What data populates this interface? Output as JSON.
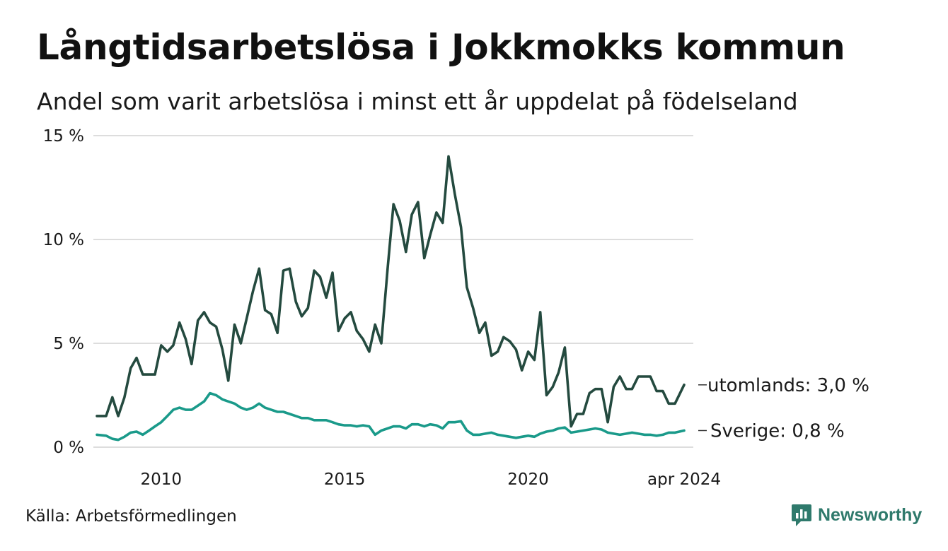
{
  "title": "Långtidsarbetslösa i Jokkmokks kommun",
  "subtitle": "Andel som varit arbetslösa i minst ett år uppdelat på födelseland",
  "source": "Källa: Arbetsförmedlingen",
  "brand": "Newsworthy",
  "colors": {
    "utomlands": "#244a3f",
    "sverige": "#1a9a8a",
    "grid": "#dddddd",
    "brand": "#2f7a6c"
  },
  "chart_data": {
    "type": "line",
    "title": "Långtidsarbetslösa i Jokkmokks kommun",
    "xlabel": "",
    "ylabel": "",
    "ylim": [
      0,
      15
    ],
    "xlim": [
      2008.25,
      2024.5
    ],
    "y_ticks": [
      {
        "value": 0,
        "label": "0 %"
      },
      {
        "value": 5,
        "label": "5 %"
      },
      {
        "value": 10,
        "label": "10 %"
      },
      {
        "value": 15,
        "label": "15 %"
      }
    ],
    "x_ticks": [
      {
        "value": 2010,
        "label": "2010"
      },
      {
        "value": 2015,
        "label": "2015"
      },
      {
        "value": 2020,
        "label": "2020"
      },
      {
        "value": 2024.25,
        "label": "apr 2024"
      }
    ],
    "series": [
      {
        "name": "utomlands",
        "end_label": "utomlands: 3,0 %",
        "color": "#244a3f",
        "points": [
          [
            2008.25,
            1.5
          ],
          [
            2008.5,
            1.5
          ],
          [
            2008.67,
            2.4
          ],
          [
            2008.83,
            1.5
          ],
          [
            2009.0,
            2.4
          ],
          [
            2009.17,
            3.8
          ],
          [
            2009.33,
            4.3
          ],
          [
            2009.5,
            3.5
          ],
          [
            2009.67,
            3.5
          ],
          [
            2009.83,
            3.5
          ],
          [
            2010.0,
            4.9
          ],
          [
            2010.17,
            4.6
          ],
          [
            2010.33,
            4.9
          ],
          [
            2010.5,
            6.0
          ],
          [
            2010.67,
            5.2
          ],
          [
            2010.83,
            4.0
          ],
          [
            2011.0,
            6.1
          ],
          [
            2011.17,
            6.5
          ],
          [
            2011.33,
            6.0
          ],
          [
            2011.5,
            5.8
          ],
          [
            2011.67,
            4.7
          ],
          [
            2011.83,
            3.2
          ],
          [
            2012.0,
            5.9
          ],
          [
            2012.17,
            5.0
          ],
          [
            2012.33,
            6.2
          ],
          [
            2012.5,
            7.5
          ],
          [
            2012.67,
            8.6
          ],
          [
            2012.83,
            6.6
          ],
          [
            2013.0,
            6.4
          ],
          [
            2013.17,
            5.5
          ],
          [
            2013.33,
            8.5
          ],
          [
            2013.5,
            8.6
          ],
          [
            2013.67,
            7.0
          ],
          [
            2013.83,
            6.3
          ],
          [
            2014.0,
            6.7
          ],
          [
            2014.17,
            8.5
          ],
          [
            2014.33,
            8.2
          ],
          [
            2014.5,
            7.2
          ],
          [
            2014.67,
            8.4
          ],
          [
            2014.83,
            5.6
          ],
          [
            2015.0,
            6.2
          ],
          [
            2015.17,
            6.5
          ],
          [
            2015.33,
            5.6
          ],
          [
            2015.5,
            5.2
          ],
          [
            2015.67,
            4.6
          ],
          [
            2015.83,
            5.9
          ],
          [
            2016.0,
            5.0
          ],
          [
            2016.17,
            8.6
          ],
          [
            2016.33,
            11.7
          ],
          [
            2016.5,
            10.9
          ],
          [
            2016.67,
            9.4
          ],
          [
            2016.83,
            11.2
          ],
          [
            2017.0,
            11.8
          ],
          [
            2017.17,
            9.1
          ],
          [
            2017.33,
            10.2
          ],
          [
            2017.5,
            11.3
          ],
          [
            2017.67,
            10.8
          ],
          [
            2017.83,
            14.0
          ],
          [
            2018.0,
            12.2
          ],
          [
            2018.17,
            10.6
          ],
          [
            2018.33,
            7.7
          ],
          [
            2018.5,
            6.7
          ],
          [
            2018.67,
            5.5
          ],
          [
            2018.83,
            6.0
          ],
          [
            2019.0,
            4.4
          ],
          [
            2019.17,
            4.6
          ],
          [
            2019.33,
            5.3
          ],
          [
            2019.5,
            5.1
          ],
          [
            2019.67,
            4.7
          ],
          [
            2019.83,
            3.7
          ],
          [
            2020.0,
            4.6
          ],
          [
            2020.17,
            4.2
          ],
          [
            2020.33,
            6.5
          ],
          [
            2020.5,
            2.5
          ],
          [
            2020.67,
            2.9
          ],
          [
            2020.83,
            3.6
          ],
          [
            2021.0,
            4.8
          ],
          [
            2021.17,
            1.0
          ],
          [
            2021.33,
            1.6
          ],
          [
            2021.5,
            1.6
          ],
          [
            2021.67,
            2.6
          ],
          [
            2021.83,
            2.8
          ],
          [
            2022.0,
            2.8
          ],
          [
            2022.17,
            1.2
          ],
          [
            2022.33,
            2.9
          ],
          [
            2022.5,
            3.4
          ],
          [
            2022.67,
            2.8
          ],
          [
            2022.83,
            2.8
          ],
          [
            2023.0,
            3.4
          ],
          [
            2023.17,
            3.4
          ],
          [
            2023.33,
            3.4
          ],
          [
            2023.5,
            2.7
          ],
          [
            2023.67,
            2.7
          ],
          [
            2023.83,
            2.1
          ],
          [
            2024.0,
            2.1
          ],
          [
            2024.25,
            3.0
          ]
        ]
      },
      {
        "name": "Sverige",
        "end_label": "Sverige: 0,8 %",
        "color": "#1a9a8a",
        "points": [
          [
            2008.25,
            0.6
          ],
          [
            2008.5,
            0.55
          ],
          [
            2008.67,
            0.4
          ],
          [
            2008.83,
            0.35
          ],
          [
            2009.0,
            0.5
          ],
          [
            2009.17,
            0.7
          ],
          [
            2009.33,
            0.75
          ],
          [
            2009.5,
            0.6
          ],
          [
            2009.67,
            0.8
          ],
          [
            2009.83,
            1.0
          ],
          [
            2010.0,
            1.2
          ],
          [
            2010.17,
            1.5
          ],
          [
            2010.33,
            1.8
          ],
          [
            2010.5,
            1.9
          ],
          [
            2010.67,
            1.8
          ],
          [
            2010.83,
            1.8
          ],
          [
            2011.0,
            2.0
          ],
          [
            2011.17,
            2.2
          ],
          [
            2011.33,
            2.6
          ],
          [
            2011.5,
            2.5
          ],
          [
            2011.67,
            2.3
          ],
          [
            2011.83,
            2.2
          ],
          [
            2012.0,
            2.1
          ],
          [
            2012.17,
            1.9
          ],
          [
            2012.33,
            1.8
          ],
          [
            2012.5,
            1.9
          ],
          [
            2012.67,
            2.1
          ],
          [
            2012.83,
            1.9
          ],
          [
            2013.0,
            1.8
          ],
          [
            2013.17,
            1.7
          ],
          [
            2013.33,
            1.7
          ],
          [
            2013.5,
            1.6
          ],
          [
            2013.67,
            1.5
          ],
          [
            2013.83,
            1.4
          ],
          [
            2014.0,
            1.4
          ],
          [
            2014.17,
            1.3
          ],
          [
            2014.33,
            1.3
          ],
          [
            2014.5,
            1.3
          ],
          [
            2014.67,
            1.2
          ],
          [
            2014.83,
            1.1
          ],
          [
            2015.0,
            1.05
          ],
          [
            2015.17,
            1.05
          ],
          [
            2015.33,
            1.0
          ],
          [
            2015.5,
            1.05
          ],
          [
            2015.67,
            1.0
          ],
          [
            2015.83,
            0.6
          ],
          [
            2016.0,
            0.8
          ],
          [
            2016.17,
            0.9
          ],
          [
            2016.33,
            1.0
          ],
          [
            2016.5,
            1.0
          ],
          [
            2016.67,
            0.9
          ],
          [
            2016.83,
            1.1
          ],
          [
            2017.0,
            1.1
          ],
          [
            2017.17,
            1.0
          ],
          [
            2017.33,
            1.1
          ],
          [
            2017.5,
            1.05
          ],
          [
            2017.67,
            0.9
          ],
          [
            2017.83,
            1.2
          ],
          [
            2018.0,
            1.2
          ],
          [
            2018.17,
            1.25
          ],
          [
            2018.33,
            0.8
          ],
          [
            2018.5,
            0.6
          ],
          [
            2018.67,
            0.6
          ],
          [
            2018.83,
            0.65
          ],
          [
            2019.0,
            0.7
          ],
          [
            2019.17,
            0.6
          ],
          [
            2019.33,
            0.55
          ],
          [
            2019.5,
            0.5
          ],
          [
            2019.67,
            0.45
          ],
          [
            2019.83,
            0.5
          ],
          [
            2020.0,
            0.55
          ],
          [
            2020.17,
            0.5
          ],
          [
            2020.33,
            0.65
          ],
          [
            2020.5,
            0.75
          ],
          [
            2020.67,
            0.8
          ],
          [
            2020.83,
            0.9
          ],
          [
            2021.0,
            0.95
          ],
          [
            2021.17,
            0.7
          ],
          [
            2021.33,
            0.75
          ],
          [
            2021.5,
            0.8
          ],
          [
            2021.67,
            0.85
          ],
          [
            2021.83,
            0.9
          ],
          [
            2022.0,
            0.85
          ],
          [
            2022.17,
            0.7
          ],
          [
            2022.33,
            0.65
          ],
          [
            2022.5,
            0.6
          ],
          [
            2022.67,
            0.65
          ],
          [
            2022.83,
            0.7
          ],
          [
            2023.0,
            0.65
          ],
          [
            2023.17,
            0.6
          ],
          [
            2023.33,
            0.6
          ],
          [
            2023.5,
            0.55
          ],
          [
            2023.67,
            0.6
          ],
          [
            2023.83,
            0.7
          ],
          [
            2024.0,
            0.7
          ],
          [
            2024.25,
            0.8
          ]
        ]
      }
    ]
  }
}
